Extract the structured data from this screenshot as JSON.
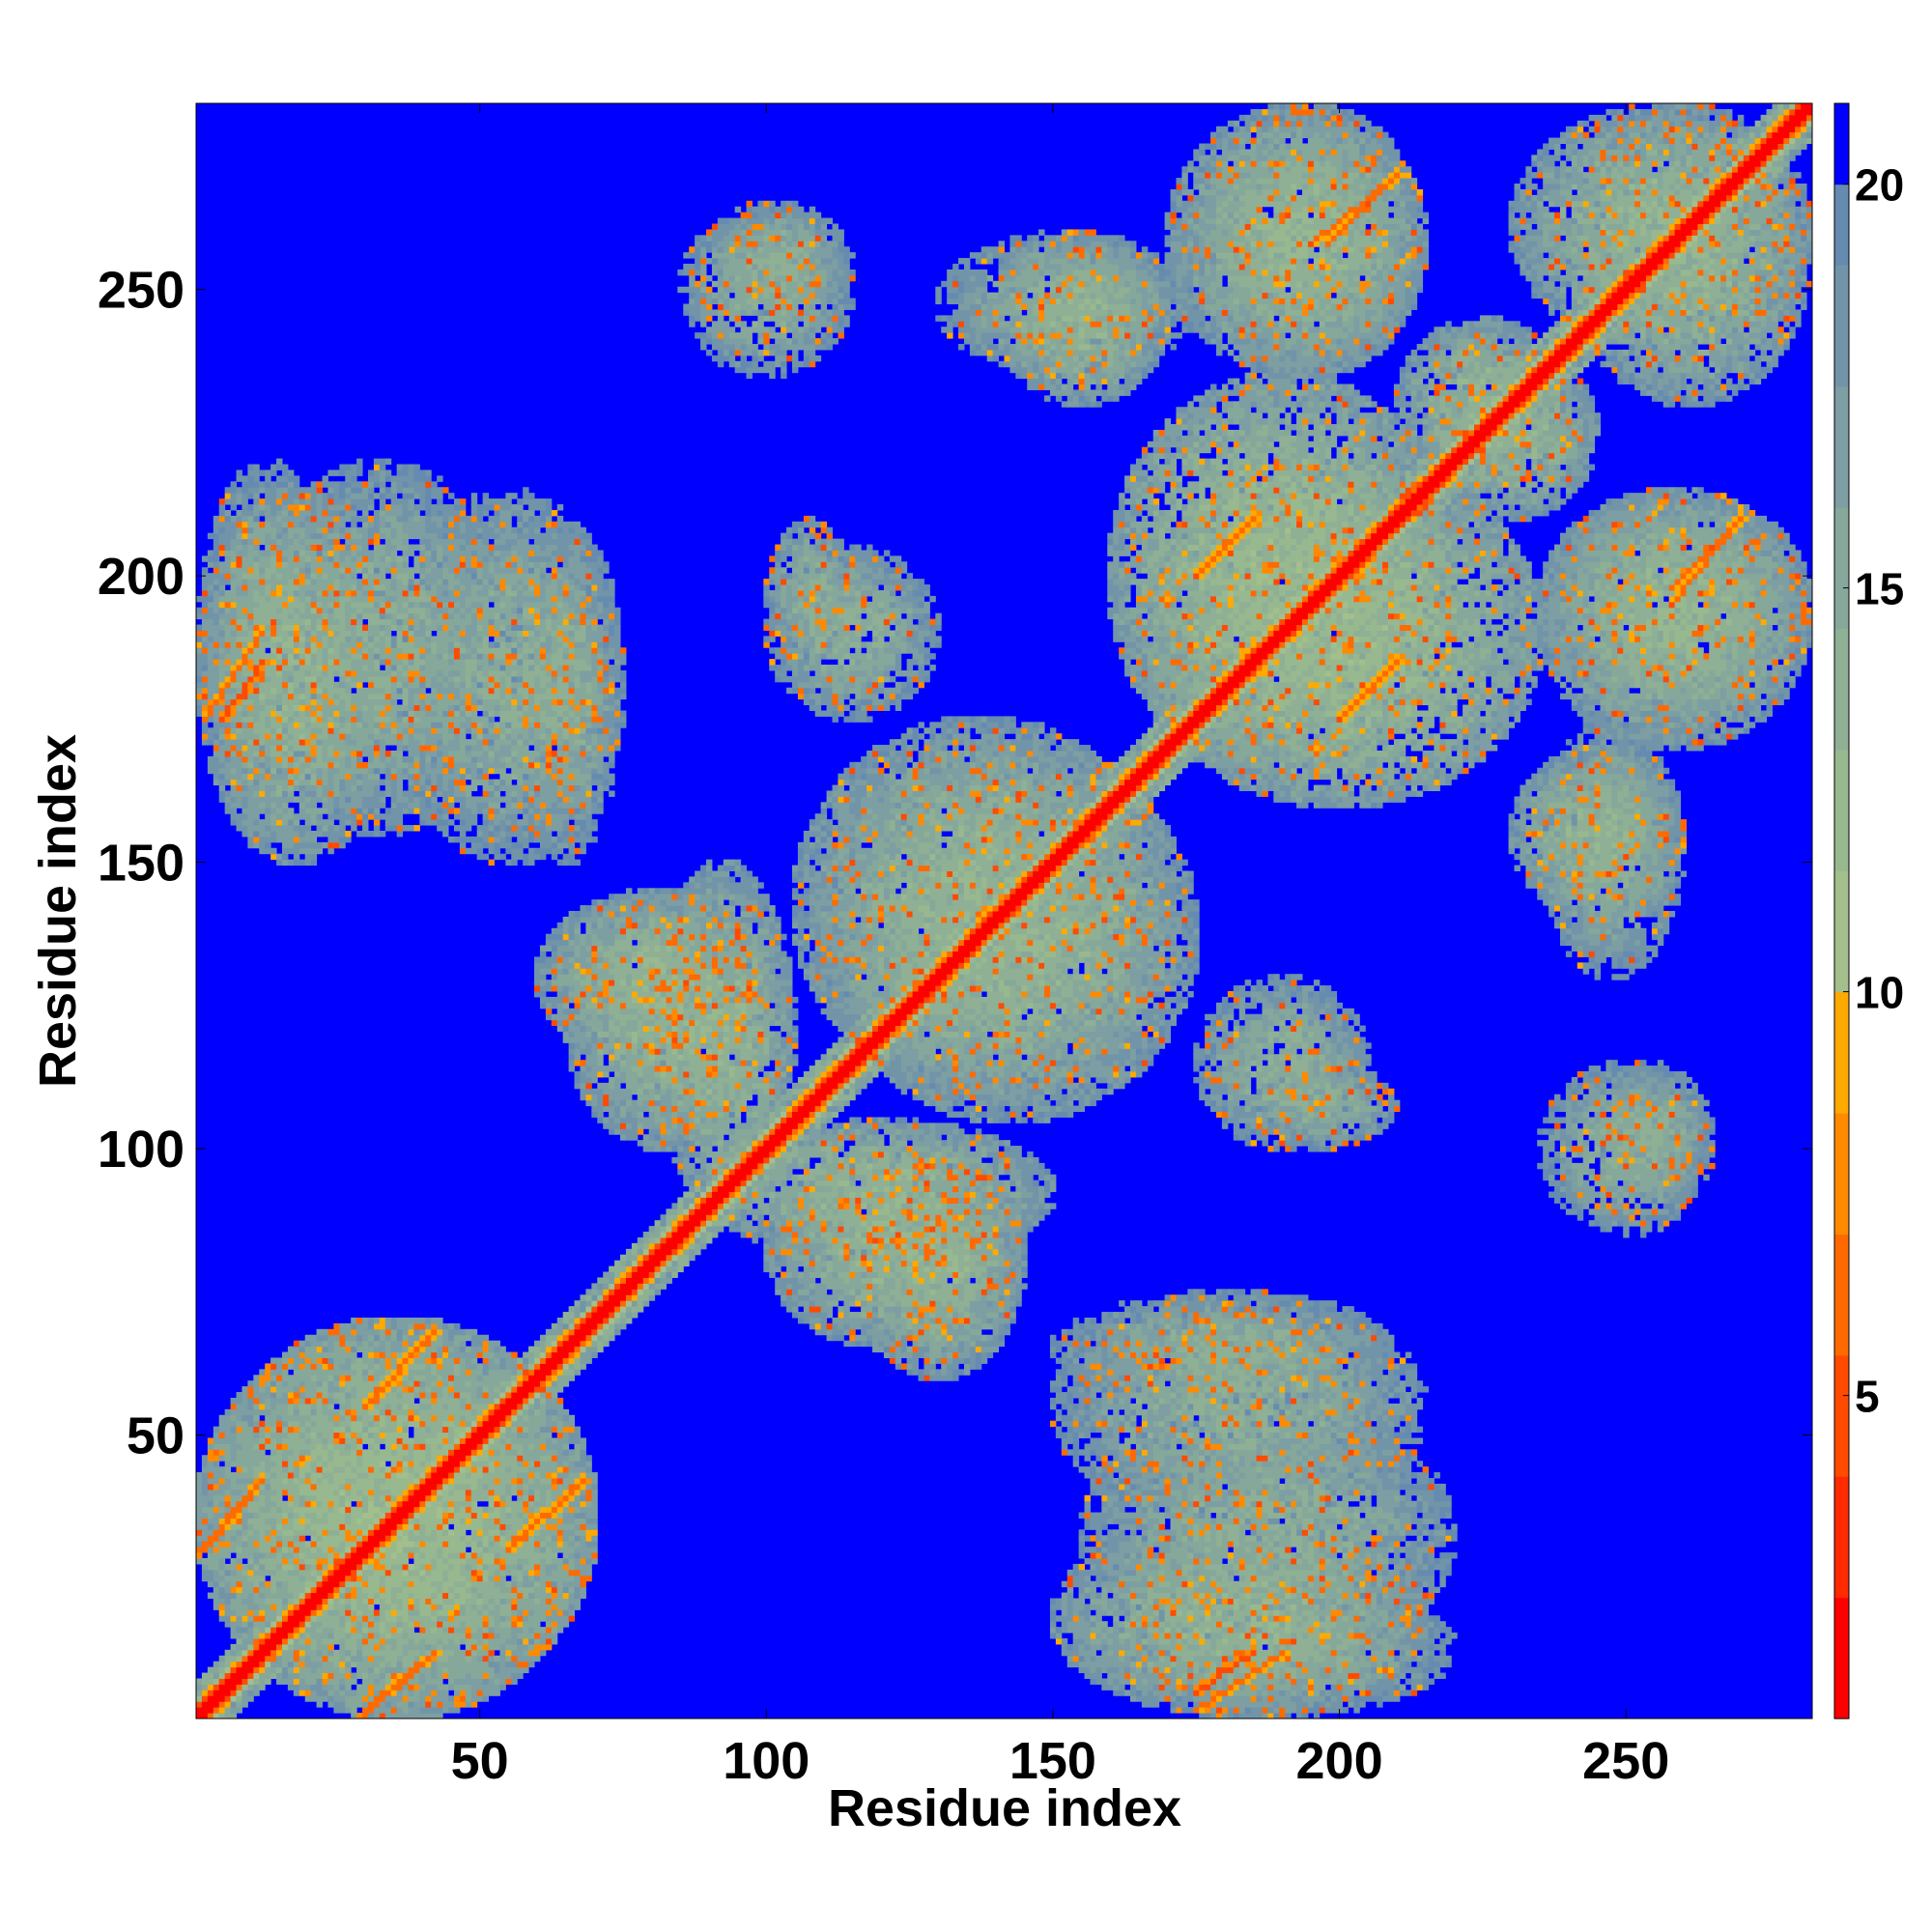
{
  "chart_data": {
    "type": "heatmap",
    "title": "",
    "xlabel": "Residue index",
    "ylabel": "Residue index",
    "n_residues": 282,
    "xlim": [
      1,
      282
    ],
    "ylim": [
      1,
      282
    ],
    "x_ticks": [
      50,
      100,
      150,
      200,
      250
    ],
    "y_ticks": [
      50,
      100,
      150,
      200,
      250
    ],
    "grid": false,
    "colorbar": {
      "position": "right",
      "range": [
        1,
        21
      ],
      "ticks": [
        5,
        10,
        15,
        20
      ],
      "levels": [
        {
          "from": 1,
          "to": 2.5,
          "color": "#ff0000"
        },
        {
          "from": 2.5,
          "to": 4,
          "color": "#ff2a00"
        },
        {
          "from": 4,
          "to": 5.5,
          "color": "#ff4a00"
        },
        {
          "from": 5.5,
          "to": 7,
          "color": "#ff6a00"
        },
        {
          "from": 7,
          "to": 8.5,
          "color": "#ff8a00"
        },
        {
          "from": 8.5,
          "to": 10,
          "color": "#ffaa00"
        },
        {
          "from": 10,
          "to": 11.5,
          "color": "#a3bf8c"
        },
        {
          "from": 11.5,
          "to": 13,
          "color": "#98b98f"
        },
        {
          "from": 13,
          "to": 14.5,
          "color": "#8fb095"
        },
        {
          "from": 14.5,
          "to": 16,
          "color": "#86a89b"
        },
        {
          "from": 16,
          "to": 17.5,
          "color": "#7d9ea2"
        },
        {
          "from": 17.5,
          "to": 19,
          "color": "#7294a8"
        },
        {
          "from": 19,
          "to": 20,
          "color": "#658bb0"
        },
        {
          "from": 20,
          "to": 21,
          "color": "#0000ff"
        }
      ]
    },
    "diagonal": {
      "band_width_residues": 6,
      "contact_value": 2.0
    },
    "contact_regions": [
      {
        "x": [
          1,
          70
        ],
        "y": [
          1,
          70
        ],
        "value": 13,
        "orientation": "symmetric"
      },
      {
        "x": [
          1,
          35
        ],
        "y": [
          150,
          215
        ],
        "value": 14
      },
      {
        "x": [
          35,
          75
        ],
        "y": [
          150,
          215
        ],
        "value": 15
      },
      {
        "x": [
          60,
          100
        ],
        "y": [
          115,
          145
        ],
        "value": 14
      },
      {
        "x": [
          80,
          105
        ],
        "y": [
          90,
          150
        ],
        "value": 14
      },
      {
        "x": [
          85,
          115
        ],
        "y": [
          235,
          265
        ],
        "value": 15
      },
      {
        "x": [
          100,
          130
        ],
        "y": [
          175,
          205
        ],
        "value": 15
      },
      {
        "x": [
          105,
          170
        ],
        "y": [
          110,
          175
        ],
        "value": 14
      },
      {
        "x": [
          100,
          145
        ],
        "y": [
          65,
          100
        ],
        "value": 14
      },
      {
        "x": [
          130,
          175
        ],
        "y": [
          235,
          260
        ],
        "value": 15
      },
      {
        "x": [
          150,
          210
        ],
        "y": [
          55,
          75
        ],
        "value": 15
      },
      {
        "x": [
          155,
          220
        ],
        "y": [
          10,
          55
        ],
        "value": 15
      },
      {
        "x": [
          160,
          220
        ],
        "y": [
          1,
          25
        ],
        "value": 15
      },
      {
        "x": [
          165,
          235
        ],
        "y": [
          160,
          220
        ],
        "value": 13
      },
      {
        "x": [
          175,
          215
        ],
        "y": [
          235,
          282
        ],
        "value": 14
      },
      {
        "x": [
          185,
          210
        ],
        "y": [
          100,
          115
        ],
        "value": 15
      },
      {
        "x": [
          210,
          240
        ],
        "y": [
          215,
          245
        ],
        "value": 14
      },
      {
        "x": [
          230,
          260
        ],
        "y": [
          140,
          170
        ],
        "value": 14
      },
      {
        "x": [
          235,
          282
        ],
        "y": [
          170,
          215
        ],
        "value": 14
      },
      {
        "x": [
          245,
          265
        ],
        "y": [
          90,
          115
        ],
        "value": 15
      },
      {
        "x": [
          240,
          282
        ],
        "y": [
          230,
          282
        ],
        "value": 14
      }
    ],
    "beta_pairs": [
      {
        "start": [
          5,
          175
        ],
        "end": [
          12,
          185
        ],
        "direction": "parallel",
        "value": 5
      },
      {
        "start": [
          1,
          30
        ],
        "end": [
          10,
          40
        ],
        "direction": "parallel",
        "value": 6
      },
      {
        "start": [
          30,
          55
        ],
        "end": [
          42,
          68
        ],
        "direction": "parallel",
        "value": 6
      },
      {
        "start": [
          55,
          30
        ],
        "end": [
          68,
          42
        ],
        "direction": "parallel",
        "value": 6
      },
      {
        "start": [
          175,
          200
        ],
        "end": [
          185,
          210
        ],
        "direction": "parallel",
        "value": 6
      },
      {
        "start": [
          200,
          175
        ],
        "end": [
          210,
          185
        ],
        "direction": "parallel",
        "value": 6
      },
      {
        "start": [
          195,
          258
        ],
        "end": [
          210,
          270
        ],
        "direction": "parallel",
        "value": 6
      },
      {
        "start": [
          258,
          198
        ],
        "end": [
          270,
          210
        ],
        "direction": "parallel",
        "value": 6
      },
      {
        "start": [
          175,
          2
        ],
        "end": [
          190,
          12
        ],
        "direction": "parallel",
        "value": 6
      },
      {
        "start": [
          30,
          2
        ],
        "end": [
          42,
          12
        ],
        "direction": "parallel",
        "value": 6
      }
    ]
  }
}
